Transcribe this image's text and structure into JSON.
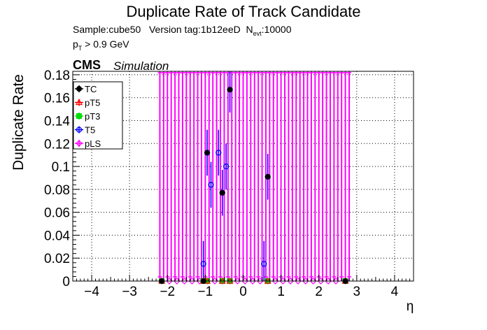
{
  "header": {
    "title": "Duplicate Rate of Track Candidate",
    "sample_prefix": "Sample:",
    "sample": "cube50",
    "version_prefix": "Version tag:",
    "version": "1b12eeD",
    "nevt_symbol": "N",
    "nevt_sub": "evt",
    "nevt_value": ":10000",
    "pt_symbol": "p",
    "pt_sub": "T",
    "pt_cut": " > 0.9 GeV",
    "cms": "CMS",
    "simulation": "Simulation"
  },
  "chart_data": {
    "type": "scatter",
    "title": "Duplicate Rate of Track Candidate",
    "xlabel": "η",
    "ylabel": "Duplicate Rate",
    "xlim": [
      -4.5,
      4.5
    ],
    "ylim": [
      0,
      0.183
    ],
    "xticks": [
      -4,
      -3,
      -2,
      -1,
      0,
      1,
      2,
      3,
      4
    ],
    "xtick_labels": [
      "−4",
      "−3",
      "−2",
      "−1",
      "0",
      "1",
      "2",
      "3",
      "4"
    ],
    "yticks": [
      0,
      0.02,
      0.04,
      0.06,
      0.08,
      0.1,
      0.12,
      0.14,
      0.16,
      0.18
    ],
    "ytick_labels": [
      "0",
      "0.02",
      "0.04",
      "0.06",
      "0.08",
      "0.1",
      "0.12",
      "0.14",
      "0.16",
      "0.18"
    ],
    "grid": true,
    "legend_position": "top-left",
    "legend": [
      "TC",
      "pT5",
      "pT3",
      "T5",
      "pLS"
    ],
    "series": [
      {
        "name": "TC",
        "color": "#000000",
        "x": [
          -2.15,
          -1.05,
          -0.95,
          -0.55,
          -0.35,
          0.65,
          2.7
        ],
        "y": [
          0,
          0,
          0.112,
          0.077,
          0.167,
          0.091,
          0
        ]
      },
      {
        "name": "pT5",
        "color": "#ff0000",
        "x": [
          -2.15,
          -1.05,
          -0.95,
          -0.55,
          -0.35,
          0.65,
          2.7
        ],
        "y": [
          0,
          0,
          0,
          0,
          0,
          0,
          0
        ]
      },
      {
        "name": "pT3",
        "color": "#00dd00",
        "x": [
          -2.15,
          -1.05,
          -0.95,
          -0.55,
          -0.35,
          0.65,
          2.7
        ],
        "y": [
          0,
          0,
          0,
          0,
          0,
          0,
          0
        ]
      },
      {
        "name": "T5",
        "color": "#0000ff",
        "x": [
          -2.15,
          -1.05,
          -0.95,
          -0.85,
          -0.65,
          -0.55,
          -0.45,
          -0.35,
          0.55,
          0.65,
          2.7
        ],
        "y": [
          0,
          0.015,
          0.112,
          0.084,
          0.112,
          0.077,
          0.1,
          0.167,
          0.015,
          0.091,
          0
        ]
      },
      {
        "name": "pLS",
        "color": "#ff00ff",
        "x": [
          -2.15,
          -1.95,
          -1.75,
          -1.55,
          -1.35,
          -1.15,
          -0.95,
          -0.75,
          -0.55,
          -0.35,
          -0.15,
          0.05,
          0.25,
          0.45,
          0.65,
          0.85,
          1.05,
          1.25,
          1.45,
          1.65,
          1.85,
          2.05,
          2.25,
          2.45,
          2.7
        ],
        "y": [
          0,
          0,
          0,
          0,
          0,
          0,
          0,
          0,
          0,
          0,
          0,
          0,
          0,
          0,
          0,
          0,
          0,
          0,
          0,
          0,
          0,
          0,
          0,
          0,
          0
        ]
      }
    ]
  }
}
